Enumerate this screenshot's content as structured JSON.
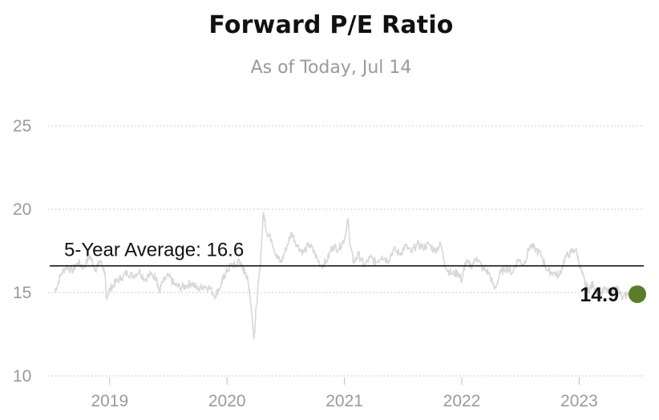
{
  "chart_data": {
    "type": "line",
    "title": "Forward P/E Ratio",
    "subtitle": "As of Today, Jul 14",
    "xlabel": "",
    "ylabel": "",
    "xlim": [
      2018.53,
      2023.53
    ],
    "ylim": [
      10,
      25
    ],
    "y_ticks": [
      "10",
      "15",
      "20",
      "25"
    ],
    "x_ticks": [
      {
        "label": "2019",
        "x": 2019.0
      },
      {
        "label": "2020",
        "x": 2020.0
      },
      {
        "label": "2021",
        "x": 2021.0
      },
      {
        "label": "2022",
        "x": 2022.0
      },
      {
        "label": "2023",
        "x": 2023.0
      }
    ],
    "grid": "horizontal dotted",
    "average": {
      "label": "5-Year Average: 16.6",
      "value": 16.6
    },
    "current": {
      "label": "14.9",
      "value": 14.9,
      "x": 2023.53
    },
    "colors": {
      "line": "#d8d8d8",
      "average_line": "#111111",
      "current_dot": "#5a7d2a",
      "grid": "#c9c9c9",
      "tick_label": "#9a9a9a"
    },
    "series": [
      {
        "x": [
          2018.53,
          2018.58,
          2018.63,
          2018.68,
          2018.73,
          2018.78,
          2018.83,
          2018.88,
          2018.92,
          2018.96,
          2018.97,
          2019.0,
          2019.05,
          2019.1,
          2019.15,
          2019.2,
          2019.25,
          2019.3,
          2019.35,
          2019.4,
          2019.42,
          2019.45,
          2019.5,
          2019.55,
          2019.6,
          2019.65,
          2019.7,
          2019.75,
          2019.8,
          2019.85,
          2019.9,
          2019.95,
          2019.97,
          2020.0,
          2020.04,
          2020.08,
          2020.1,
          2020.13,
          2020.16,
          2020.19,
          2020.21,
          2020.23,
          2020.25,
          2020.28,
          2020.31,
          2020.34,
          2020.38,
          2020.42,
          2020.46,
          2020.5,
          2020.55,
          2020.6,
          2020.65,
          2020.7,
          2020.75,
          2020.8,
          2020.85,
          2020.9,
          2020.95,
          2021.0,
          2021.03,
          2021.05,
          2021.08,
          2021.12,
          2021.17,
          2021.22,
          2021.27,
          2021.32,
          2021.37,
          2021.42,
          2021.47,
          2021.52,
          2021.57,
          2021.62,
          2021.67,
          2021.72,
          2021.77,
          2021.82,
          2021.87,
          2021.92,
          2021.97,
          2022.0,
          2022.03,
          2022.08,
          2022.13,
          2022.18,
          2022.23,
          2022.28,
          2022.33,
          2022.38,
          2022.43,
          2022.48,
          2022.53,
          2022.58,
          2022.63,
          2022.68,
          2022.73,
          2022.78,
          2022.83,
          2022.88,
          2022.93,
          2022.97,
          2023.02,
          2023.05,
          2023.08,
          2023.12,
          2023.17,
          2023.22,
          2023.27,
          2023.32,
          2023.37,
          2023.42,
          2023.47,
          2023.52
        ],
        "y": [
          15.0,
          16.0,
          16.6,
          16.3,
          16.8,
          16.5,
          17.2,
          16.4,
          16.9,
          16.2,
          14.7,
          15.2,
          15.6,
          15.9,
          16.2,
          16.0,
          16.3,
          15.8,
          16.1,
          15.9,
          15.0,
          15.6,
          16.0,
          15.5,
          15.3,
          15.4,
          15.6,
          15.2,
          15.4,
          15.3,
          14.8,
          15.5,
          15.9,
          16.3,
          16.7,
          16.6,
          17.0,
          16.4,
          16.2,
          15.2,
          13.8,
          12.3,
          14.2,
          16.4,
          19.8,
          18.6,
          18.2,
          17.2,
          16.8,
          17.6,
          18.6,
          17.8,
          17.4,
          17.9,
          17.3,
          16.6,
          16.9,
          17.8,
          17.6,
          18.2,
          19.4,
          17.8,
          16.8,
          17.3,
          16.6,
          17.1,
          16.8,
          17.2,
          16.9,
          17.6,
          17.3,
          17.8,
          17.4,
          17.9,
          17.7,
          17.9,
          17.5,
          17.9,
          16.4,
          16.1,
          16.2,
          15.7,
          16.8,
          16.6,
          17.1,
          16.4,
          16.2,
          15.2,
          16.2,
          16.5,
          16.2,
          17.0,
          16.7,
          17.8,
          17.6,
          17.2,
          16.3,
          16.2,
          16.0,
          17.1,
          17.4,
          17.6,
          16.3,
          15.5,
          15.2,
          15.5,
          14.8,
          15.2,
          14.9,
          15.4,
          14.6,
          15.0,
          15.3,
          14.9
        ]
      }
    ]
  }
}
